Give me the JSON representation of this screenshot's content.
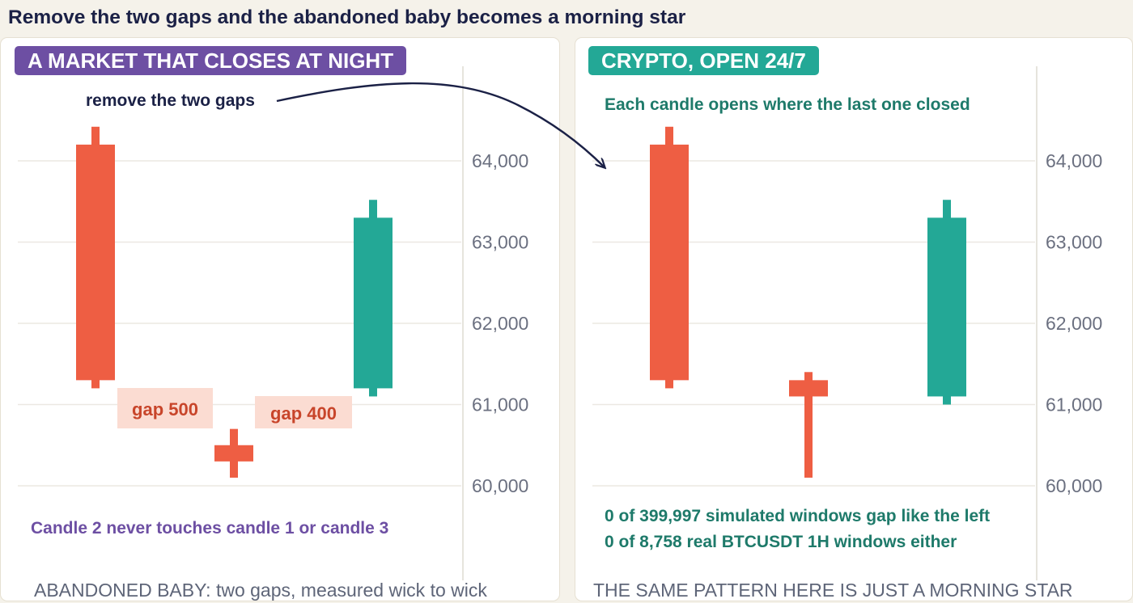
{
  "headline": "Remove the two gaps and the abandoned baby becomes a morning star",
  "colors": {
    "bearish": "#ee5e43",
    "bullish": "#23a896",
    "purple": "#6d4fa3",
    "teal_text": "#1e7a6a",
    "navy": "#1b2146"
  },
  "chart_data": [
    {
      "type": "candlestick",
      "panel_label": "A MARKET THAT CLOSES AT NIGHT",
      "y_ticks": [
        "64,000",
        "63,000",
        "62,000",
        "61,000",
        "60,000"
      ],
      "ylim": [
        59000,
        65200
      ],
      "grid": true,
      "candles": [
        {
          "open": 64200,
          "high": 64420,
          "low": 61200,
          "close": 61300,
          "direction": "bearish"
        },
        {
          "open": 60500,
          "high": 60700,
          "low": 60100,
          "close": 60300,
          "direction": "bearish"
        },
        {
          "open": 61200,
          "high": 63520,
          "low": 61100,
          "close": 63300,
          "direction": "bullish"
        }
      ],
      "annotations": {
        "gap1": "gap 500",
        "gap2": "gap 400",
        "arrow_label": "remove the two gaps",
        "note": "Candle 2 never touches candle 1 or candle 3"
      },
      "footer": "ABANDONED BABY: two gaps, measured wick to wick"
    },
    {
      "type": "candlestick",
      "panel_label": "CRYPTO, OPEN 24/7",
      "y_ticks": [
        "64,000",
        "63,000",
        "62,000",
        "61,000",
        "60,000"
      ],
      "ylim": [
        59000,
        65200
      ],
      "grid": true,
      "candles": [
        {
          "open": 64200,
          "high": 64420,
          "low": 61200,
          "close": 61300,
          "direction": "bearish"
        },
        {
          "open": 61300,
          "high": 61400,
          "low": 60100,
          "close": 61100,
          "direction": "bearish"
        },
        {
          "open": 61100,
          "high": 63520,
          "low": 61000,
          "close": 63300,
          "direction": "bullish"
        }
      ],
      "annotations": {
        "top_note": "Each candle opens where the last one closed",
        "stat1": "0 of 399,997 simulated windows gap like the left",
        "stat2": "0 of 8,758 real BTCUSDT 1H windows either"
      },
      "footer": "THE SAME PATTERN HERE IS JUST A MORNING STAR"
    }
  ]
}
